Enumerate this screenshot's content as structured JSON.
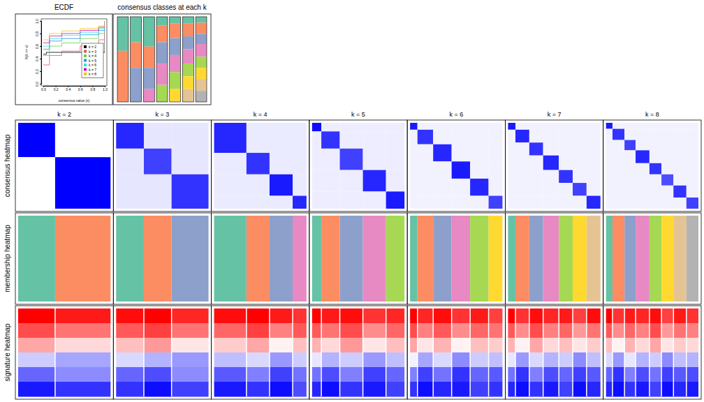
{
  "chart_data": [
    {
      "type": "line",
      "title": "ECDF",
      "xlabel": "consensus value (x)",
      "ylabel": "P(X <= x)",
      "xlim": [
        0,
        1
      ],
      "ylim": [
        0,
        1
      ],
      "xticks": [
        {
          "value": 0,
          "label": "0.0"
        },
        {
          "value": 0.2,
          "label": "0.2"
        },
        {
          "value": 0.4,
          "label": "0.4"
        },
        {
          "value": 0.6,
          "label": "0.6"
        },
        {
          "value": 0.8,
          "label": "0.8"
        },
        {
          "value": 1,
          "label": "1.0"
        }
      ],
      "yticks": [
        {
          "value": 0,
          "label": "0.0"
        },
        {
          "value": 0.2,
          "label": "0.2"
        },
        {
          "value": 0.4,
          "label": "0.4"
        },
        {
          "value": 0.6,
          "label": "0.6"
        },
        {
          "value": 0.8,
          "label": "0.8"
        },
        {
          "value": 1,
          "label": "1.0"
        }
      ],
      "legend": "bottomright",
      "series": [
        {
          "name": "k = 2",
          "color": "#000000",
          "x": [
            0,
            0.05,
            0.95,
            1
          ],
          "values": [
            0.47,
            0.5,
            0.5,
            1
          ]
        },
        {
          "name": "k = 3",
          "color": "#DF536B",
          "x": [
            0,
            0.1,
            0.3,
            0.6,
            0.9,
            1
          ],
          "values": [
            0.3,
            0.45,
            0.52,
            0.6,
            0.7,
            1
          ]
        },
        {
          "name": "k = 4",
          "color": "#61D04F",
          "x": [
            0,
            0.1,
            0.3,
            0.6,
            0.9,
            1
          ],
          "values": [
            0.45,
            0.6,
            0.65,
            0.72,
            0.8,
            1
          ]
        },
        {
          "name": "k = 5",
          "color": "#2297E6",
          "x": [
            0,
            0.1,
            0.3,
            0.6,
            0.9,
            1
          ],
          "values": [
            0.55,
            0.68,
            0.72,
            0.78,
            0.85,
            1
          ]
        },
        {
          "name": "k = 6",
          "color": "#28E2E5",
          "x": [
            0,
            0.1,
            0.3,
            0.6,
            0.9,
            1
          ],
          "values": [
            0.6,
            0.72,
            0.77,
            0.82,
            0.88,
            1
          ]
        },
        {
          "name": "k = 7",
          "color": "#CD0BBC",
          "x": [
            0,
            0.1,
            0.3,
            0.6,
            0.9,
            1
          ],
          "values": [
            0.65,
            0.76,
            0.8,
            0.85,
            0.9,
            1
          ]
        },
        {
          "name": "k = 8",
          "color": "#F5C710",
          "x": [
            0,
            0.1,
            0.3,
            0.6,
            0.9,
            1
          ],
          "values": [
            0.7,
            0.8,
            0.84,
            0.88,
            0.92,
            1
          ]
        }
      ]
    },
    {
      "type": "heatmap",
      "title": "consensus classes at each k",
      "row_labels": [
        "consensus heatmap",
        "membership heatmap",
        "signature heatmap"
      ],
      "color_range": [
        -2,
        2
      ],
      "panels": [
        {
          "title": "k = 2",
          "groups": [
            40,
            60
          ],
          "colors": [
            "#66C2A5",
            "#FC8D62"
          ],
          "within": [
            1,
            1
          ],
          "between": 0,
          "signature": [
            [
              2,
              1.8
            ],
            [
              1.4,
              1.1
            ],
            [
              0.7,
              0.3
            ],
            [
              -0.4,
              -0.7
            ],
            [
              -1.2,
              -0.9
            ],
            [
              -1.8,
              -1.6
            ]
          ]
        },
        {
          "title": "k = 3",
          "groups": [
            30,
            30,
            40
          ],
          "colors": [
            "#66C2A5",
            "#FC8D62",
            "#8DA0CB"
          ],
          "within": [
            0.85,
            0.75,
            0.8
          ],
          "between": 0.1,
          "signature": [
            [
              1.9,
              2,
              1.7
            ],
            [
              1.3,
              1.5,
              1.1
            ],
            [
              0.5,
              0.8,
              0.2
            ],
            [
              -0.3,
              -0.6,
              -0.8
            ],
            [
              -1.2,
              -1.4,
              -0.9
            ],
            [
              -1.6,
              -1.9,
              -1.5
            ]
          ]
        },
        {
          "title": "k = 4",
          "groups": [
            35,
            25,
            25,
            15
          ],
          "colors": [
            "#66C2A5",
            "#FC8D62",
            "#8DA0CB",
            "#E78AC3"
          ],
          "within": [
            0.85,
            0.8,
            0.9,
            0.85
          ],
          "between": 0.08,
          "signature": [
            [
              1.9,
              2,
              1.8,
              1.6
            ],
            [
              1.2,
              1.5,
              1,
              1.3
            ],
            [
              0.4,
              0.7,
              0.1,
              0.5
            ],
            [
              -0.5,
              -0.3,
              -0.8,
              -0.4
            ],
            [
              -1.3,
              -1,
              -1.5,
              -1.1
            ],
            [
              -1.8,
              -1.6,
              -1.9,
              -1.4
            ]
          ]
        },
        {
          "title": "k = 5",
          "groups": [
            10,
            20,
            25,
            25,
            20
          ],
          "colors": [
            "#66C2A5",
            "#FC8D62",
            "#8DA0CB",
            "#E78AC3",
            "#A6D854"
          ],
          "within": [
            0.95,
            0.8,
            0.75,
            0.85,
            0.9
          ],
          "between": 0.07,
          "signature": [
            [
              2,
              1.8,
              1.9,
              1.6,
              1.7
            ],
            [
              1.3,
              1.1,
              1.4,
              0.9,
              1.2
            ],
            [
              0.6,
              0.3,
              0.8,
              0.2,
              0.5
            ],
            [
              -0.2,
              -0.6,
              -0.4,
              -0.8,
              -0.5
            ],
            [
              -1.1,
              -1.4,
              -1,
              -1.5,
              -1.2
            ],
            [
              -1.7,
              -1.9,
              -1.6,
              -1.8,
              -1.5
            ]
          ]
        },
        {
          "title": "k = 6",
          "groups": [
            8,
            17,
            20,
            20,
            20,
            15
          ],
          "colors": [
            "#66C2A5",
            "#FC8D62",
            "#8DA0CB",
            "#E78AC3",
            "#A6D854",
            "#FFD92F"
          ],
          "within": [
            0.9,
            0.8,
            0.85,
            0.9,
            0.85,
            0.75
          ],
          "between": 0.05,
          "signature": [
            [
              2,
              1.7,
              1.9,
              1.6,
              1.8,
              1.5
            ],
            [
              1.4,
              1,
              1.3,
              0.9,
              1.2,
              1.1
            ],
            [
              0.7,
              0.2,
              0.6,
              0.1,
              0.5,
              0.4
            ],
            [
              -0.1,
              -0.7,
              -0.3,
              -0.9,
              -0.4,
              -0.5
            ],
            [
              -1,
              -1.5,
              -1.1,
              -1.6,
              -1.2,
              -1.3
            ],
            [
              -1.6,
              -1.9,
              -1.7,
              -1.8,
              -1.5,
              -1.6
            ]
          ]
        },
        {
          "title": "k = 7",
          "groups": [
            8,
            15,
            15,
            17,
            15,
            15,
            15
          ],
          "colors": [
            "#66C2A5",
            "#FC8D62",
            "#8DA0CB",
            "#E78AC3",
            "#A6D854",
            "#FFD92F",
            "#E5C494"
          ],
          "within": [
            0.9,
            0.85,
            0.8,
            0.85,
            0.8,
            0.75,
            0.85
          ],
          "between": 0.05,
          "signature": [
            [
              2,
              1.6,
              1.9,
              1.7,
              1.8,
              1.5,
              1.9
            ],
            [
              1.3,
              0.9,
              1.4,
              1,
              1.2,
              0.8,
              1.1
            ],
            [
              0.6,
              0.1,
              0.7,
              0.3,
              0.5,
              0.2,
              0.4
            ],
            [
              -0.2,
              -0.8,
              -0.3,
              -0.6,
              -0.4,
              -0.9,
              -0.5
            ],
            [
              -1.1,
              -1.6,
              -1,
              -1.4,
              -1.2,
              -1.5,
              -1.3
            ],
            [
              -1.7,
              -1.9,
              -1.6,
              -1.8,
              -1.5,
              -1.9,
              -1.7
            ]
          ]
        },
        {
          "title": "k = 8",
          "groups": [
            7,
            13,
            12,
            15,
            13,
            13,
            14,
            13
          ],
          "colors": [
            "#66C2A5",
            "#FC8D62",
            "#8DA0CB",
            "#E78AC3",
            "#A6D854",
            "#FFD92F",
            "#E5C494",
            "#B3B3B3"
          ],
          "within": [
            0.9,
            0.8,
            0.75,
            0.85,
            0.8,
            0.7,
            0.8,
            0.75
          ],
          "between": 0.05,
          "signature": [
            [
              2,
              1.6,
              1.8,
              1.7,
              1.9,
              1.5,
              1.8,
              1.6
            ],
            [
              1.3,
              0.9,
              1.2,
              1,
              1.4,
              0.8,
              1.1,
              1
            ],
            [
              0.5,
              0.1,
              0.6,
              0.3,
              0.7,
              0.2,
              0.4,
              0.3
            ],
            [
              -0.3,
              -0.8,
              -0.2,
              -0.6,
              -0.4,
              -0.9,
              -0.5,
              -0.6
            ],
            [
              -1.2,
              -1.6,
              -1,
              -1.4,
              -1.1,
              -1.5,
              -1.3,
              -1.4
            ],
            [
              -1.7,
              -1.9,
              -1.6,
              -1.8,
              -1.5,
              -1.9,
              -1.7,
              -1.8
            ]
          ]
        }
      ]
    }
  ]
}
